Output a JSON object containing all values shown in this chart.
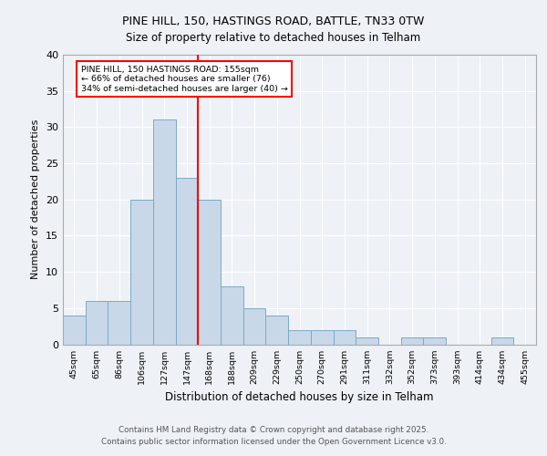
{
  "title_line1": "PINE HILL, 150, HASTINGS ROAD, BATTLE, TN33 0TW",
  "title_line2": "Size of property relative to detached houses in Telham",
  "xlabel": "Distribution of detached houses by size in Telham",
  "ylabel": "Number of detached properties",
  "bar_labels": [
    "45sqm",
    "65sqm",
    "86sqm",
    "106sqm",
    "127sqm",
    "147sqm",
    "168sqm",
    "188sqm",
    "209sqm",
    "229sqm",
    "250sqm",
    "270sqm",
    "291sqm",
    "311sqm",
    "332sqm",
    "352sqm",
    "373sqm",
    "393sqm",
    "414sqm",
    "434sqm",
    "455sqm"
  ],
  "bar_values": [
    4,
    6,
    6,
    20,
    31,
    23,
    20,
    8,
    5,
    4,
    2,
    2,
    2,
    1,
    0,
    1,
    1,
    0,
    0,
    1,
    0
  ],
  "bar_color": "#c8d8e8",
  "bar_edge_color": "#7aaac8",
  "annotation_text": "PINE HILL, 150 HASTINGS ROAD: 155sqm\n← 66% of detached houses are smaller (76)\n34% of semi-detached houses are larger (40) →",
  "annotation_box_color": "white",
  "annotation_box_edge_color": "red",
  "ref_line_color": "red",
  "ylim": [
    0,
    40
  ],
  "yticks": [
    0,
    5,
    10,
    15,
    20,
    25,
    30,
    35,
    40
  ],
  "background_color": "#eef2f7",
  "footer_text": "Contains HM Land Registry data © Crown copyright and database right 2025.\nContains public sector information licensed under the Open Government Licence v3.0.",
  "grid_color": "white"
}
